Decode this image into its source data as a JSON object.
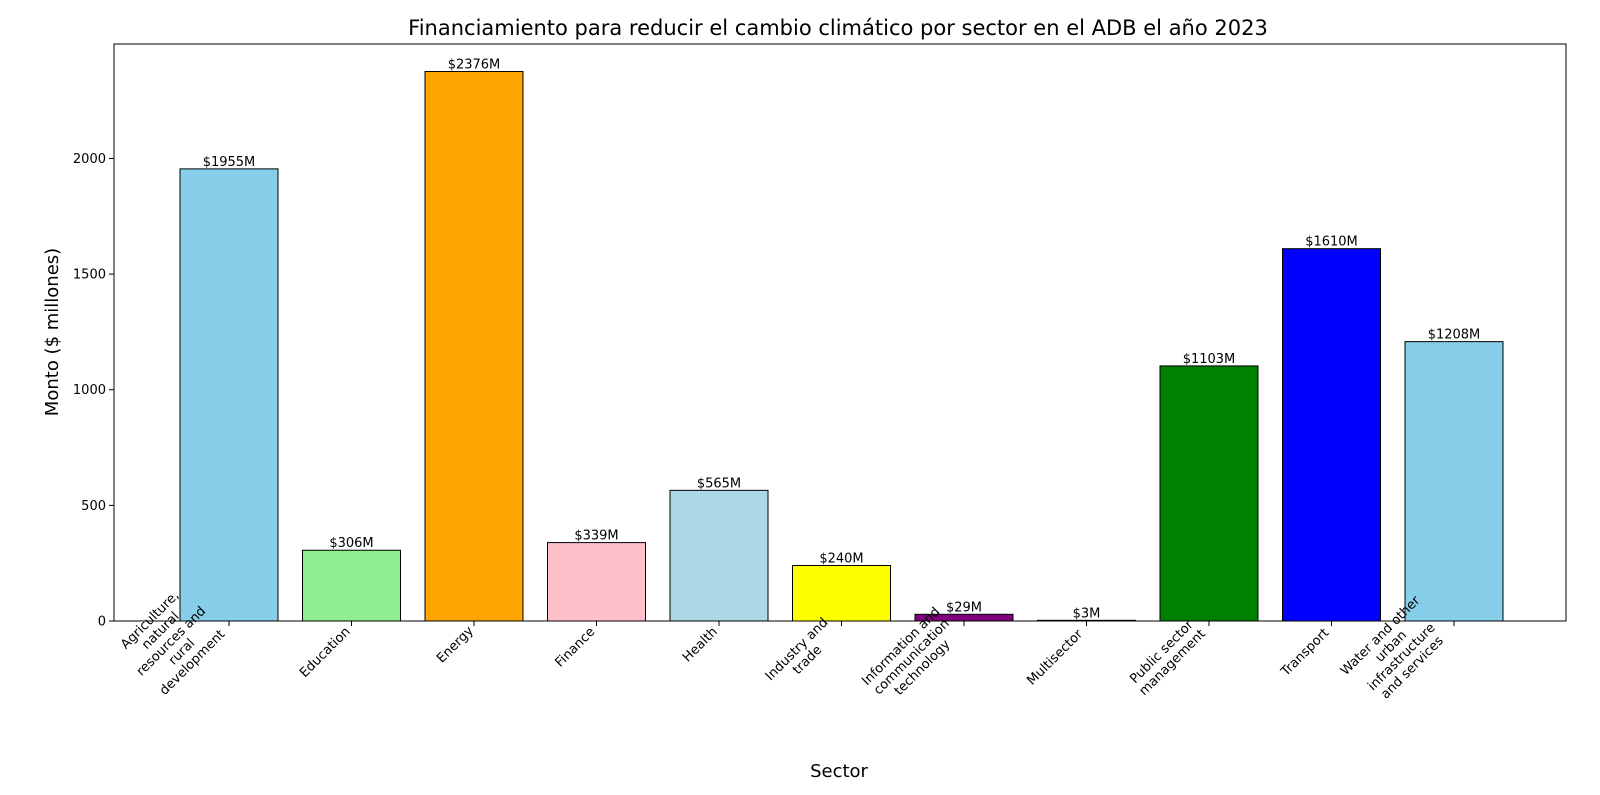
{
  "chart_data": {
    "type": "bar",
    "title": "Financiamiento para reducir el cambio climático por sector en el ADB el año 2023",
    "xlabel": "Sector",
    "ylabel": "Monto ($ millones)",
    "ylim": [
      0,
      2495
    ],
    "yticks": [
      0,
      500,
      1000,
      1500,
      2000
    ],
    "grid": false,
    "categories": [
      [
        "Agriculture,",
        "natural",
        "resources and",
        "rural",
        "development"
      ],
      [
        "Education"
      ],
      [
        "Energy"
      ],
      [
        "Finance"
      ],
      [
        "Health"
      ],
      [
        "Industry and",
        "trade"
      ],
      [
        "Information and",
        "communication",
        "technology"
      ],
      [
        "Multisector"
      ],
      [
        "Public sector",
        "management"
      ],
      [
        "Transport"
      ],
      [
        "Water and other",
        "urban",
        "infrastructure",
        "and services"
      ]
    ],
    "values": [
      1955,
      306,
      2376,
      339,
      565,
      240,
      29,
      3,
      1103,
      1610,
      1208
    ],
    "value_labels": [
      "$1955M",
      "$306M",
      "$2376M",
      "$339M",
      "$565M",
      "$240M",
      "$29M",
      "$3M",
      "$1103M",
      "$1610M",
      "$1208M"
    ],
    "colors": [
      "#87ceeb",
      "#90ee90",
      "#ffa500",
      "#ffc0cb",
      "#add8e6",
      "#ffff00",
      "#800080",
      "#ff0000",
      "#008000",
      "#0000ff",
      "#87ceeb"
    ]
  }
}
